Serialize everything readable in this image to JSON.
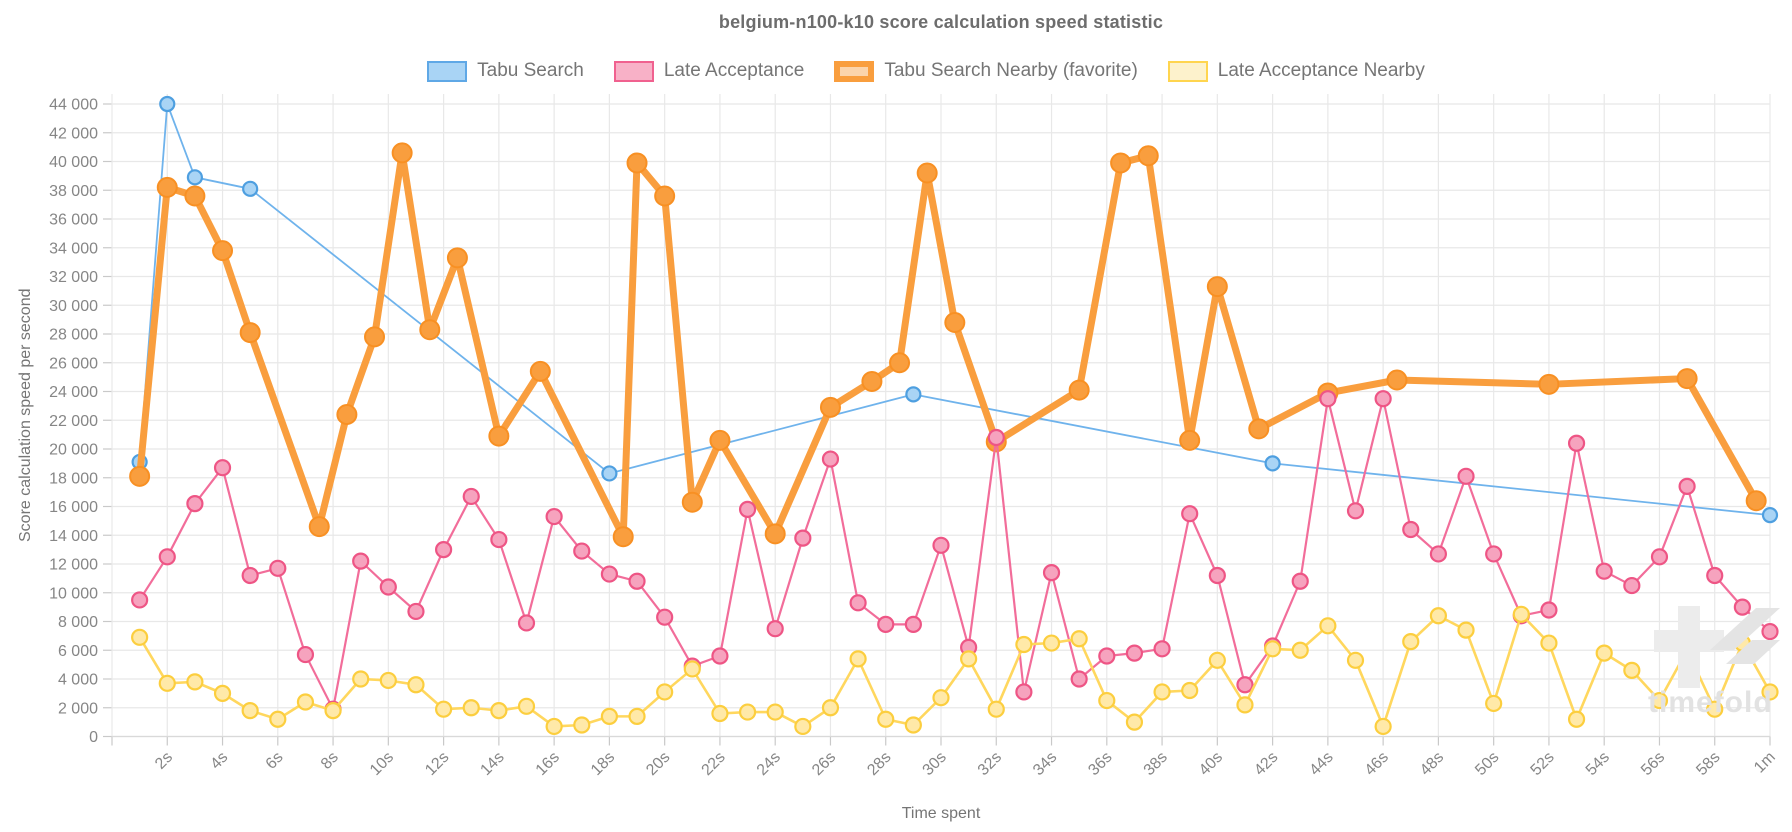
{
  "title": "belgium-n100-k10 score calculation speed statistic",
  "watermark": {
    "text": "timefold"
  },
  "legend": [
    {
      "label": "Tabu Search",
      "swatch_fill": "#a9d4f5",
      "swatch_border": "#5fa8e6",
      "swatch_border_width": 2.5
    },
    {
      "label": "Late Acceptance",
      "swatch_fill": "#f8b1c7",
      "swatch_border": "#f0618f",
      "swatch_border_width": 2.5
    },
    {
      "label": "Tabu Search Nearby (favorite)",
      "swatch_fill": "#fbd4ab",
      "swatch_border": "#f99e3e",
      "swatch_border_width": 6
    },
    {
      "label": "Late Acceptance Nearby",
      "swatch_fill": "#fdf2cc",
      "swatch_border": "#ffd54f",
      "swatch_border_width": 2.5
    }
  ],
  "chart_data": {
    "type": "line",
    "title": "belgium-n100-k10 score calculation speed statistic",
    "xlabel": "Time spent",
    "ylabel": "Score calculation speed per second",
    "x_axis": {
      "range_seconds": [
        0,
        60
      ],
      "tick_seconds": [
        2,
        4,
        6,
        8,
        10,
        12,
        14,
        16,
        18,
        20,
        22,
        24,
        26,
        28,
        30,
        32,
        34,
        36,
        38,
        40,
        42,
        44,
        46,
        48,
        50,
        52,
        54,
        56,
        58,
        60
      ],
      "tick_labels": [
        "2s",
        "4s",
        "6s",
        "8s",
        "10s",
        "12s",
        "14s",
        "16s",
        "18s",
        "20s",
        "22s",
        "24s",
        "26s",
        "28s",
        "30s",
        "32s",
        "34s",
        "36s",
        "38s",
        "40s",
        "42s",
        "44s",
        "46s",
        "48s",
        "50s",
        "52s",
        "54s",
        "56s",
        "58s",
        "1m"
      ]
    },
    "y_axis": {
      "range": [
        0,
        44000
      ],
      "tick_step": 2000,
      "tick_labels": [
        "0",
        "2 000",
        "4 000",
        "6 000",
        "8 000",
        "10 000",
        "12 000",
        "14 000",
        "16 000",
        "18 000",
        "20 000",
        "22 000",
        "24 000",
        "26 000",
        "28 000",
        "30 000",
        "32 000",
        "34 000",
        "36 000",
        "38 000",
        "40 000",
        "42 000",
        "44 000"
      ]
    },
    "grid": true,
    "legend_position": "top",
    "series": [
      {
        "name": "Tabu Search",
        "line_color": "#6fb3ec",
        "line_width": 1.8,
        "marker_fill": "#a9d4f5",
        "marker_stroke": "#4e9fe0",
        "marker_radius": 7,
        "marker_stroke_width": 2.2,
        "x": [
          1,
          2,
          3,
          5,
          18,
          29,
          42,
          60
        ],
        "y": [
          19100,
          44000,
          38900,
          38100,
          18300,
          23800,
          19000,
          15400
        ]
      },
      {
        "name": "Tabu Search Nearby (favorite)",
        "line_color": "#f99e3e",
        "line_width": 7,
        "marker_fill": "#f99e3e",
        "marker_stroke": "#f89023",
        "marker_radius": 9.5,
        "marker_stroke_width": 2,
        "x": [
          1,
          2,
          3,
          4,
          5,
          7.5,
          8.5,
          9.5,
          10.5,
          11.5,
          12.5,
          14,
          15.5,
          18.5,
          19,
          20,
          21,
          22,
          24,
          26,
          27.5,
          28.5,
          29.5,
          30.5,
          32,
          35,
          36.5,
          37.5,
          39,
          40,
          41.5,
          44,
          46.5,
          52,
          57,
          59.5
        ],
        "y": [
          18100,
          38200,
          37600,
          33800,
          28100,
          14600,
          22400,
          27800,
          40600,
          28300,
          33300,
          20900,
          25400,
          13900,
          39900,
          37600,
          16300,
          20600,
          14100,
          22900,
          24700,
          26000,
          39200,
          28800,
          20500,
          24100,
          39900,
          40400,
          20600,
          31300,
          21400,
          23900,
          24800,
          24500,
          24900,
          16400
        ]
      },
      {
        "name": "Late Acceptance",
        "line_color": "#f26d9a",
        "line_width": 2.2,
        "marker_fill": "#f6a3be",
        "marker_stroke": "#ee5585",
        "marker_radius": 7.5,
        "marker_stroke_width": 2.2,
        "x": [
          1,
          2,
          3,
          4,
          5,
          6,
          7,
          8,
          9,
          10,
          11,
          12,
          13,
          14,
          15,
          16,
          17,
          18,
          19,
          20,
          21,
          22,
          23,
          24,
          25,
          26,
          27,
          28,
          29,
          30,
          31,
          32,
          33,
          34,
          35,
          36,
          37,
          38,
          39,
          40,
          41,
          42,
          43,
          44,
          45,
          46,
          47,
          48,
          49,
          50,
          51,
          52,
          53,
          54,
          55,
          56,
          57,
          58,
          59,
          60
        ],
        "y": [
          9500,
          12500,
          16200,
          18700,
          11200,
          11700,
          5700,
          1900,
          12200,
          10400,
          8700,
          13000,
          16700,
          13700,
          7900,
          15300,
          12900,
          11300,
          10800,
          8300,
          4900,
          5600,
          15800,
          7500,
          13800,
          19300,
          9300,
          7800,
          7800,
          13300,
          6200,
          20800,
          3100,
          11400,
          4000,
          5600,
          5800,
          6100,
          15500,
          11200,
          3600,
          6300,
          10800,
          23500,
          15700,
          23500,
          14400,
          12700,
          18100,
          12700,
          8400,
          8800,
          20400,
          11500,
          10500,
          12500,
          17400,
          11200,
          9000,
          7300
        ]
      },
      {
        "name": "Late Acceptance Nearby",
        "line_color": "#ffd75e",
        "line_width": 2.6,
        "marker_fill": "#ffe9a8",
        "marker_stroke": "#fcce3e",
        "marker_radius": 7.5,
        "marker_stroke_width": 2.2,
        "x": [
          1,
          2,
          3,
          4,
          5,
          6,
          7,
          8,
          9,
          10,
          11,
          12,
          13,
          14,
          15,
          16,
          17,
          18,
          19,
          20,
          21,
          22,
          23,
          24,
          25,
          26,
          27,
          28,
          29,
          30,
          31,
          32,
          33,
          34,
          35,
          36,
          37,
          38,
          39,
          40,
          41,
          42,
          43,
          44,
          45,
          46,
          47,
          48,
          49,
          50,
          51,
          52,
          53,
          54,
          55,
          56,
          57,
          58,
          59,
          60
        ],
        "y": [
          6900,
          3700,
          3800,
          3000,
          1800,
          1200,
          2400,
          1800,
          4000,
          3900,
          3600,
          1900,
          2000,
          1800,
          2100,
          700,
          800,
          1400,
          1400,
          3100,
          4700,
          1600,
          1700,
          1700,
          700,
          2000,
          5400,
          1200,
          800,
          2700,
          5400,
          1900,
          6400,
          6500,
          6800,
          2500,
          1000,
          3100,
          3200,
          5300,
          2200,
          6100,
          6000,
          7700,
          5300,
          700,
          6600,
          8400,
          7400,
          2300,
          8500,
          6500,
          1200,
          5800,
          4600,
          2500,
          6000,
          1900,
          6500,
          3100
        ]
      }
    ]
  }
}
